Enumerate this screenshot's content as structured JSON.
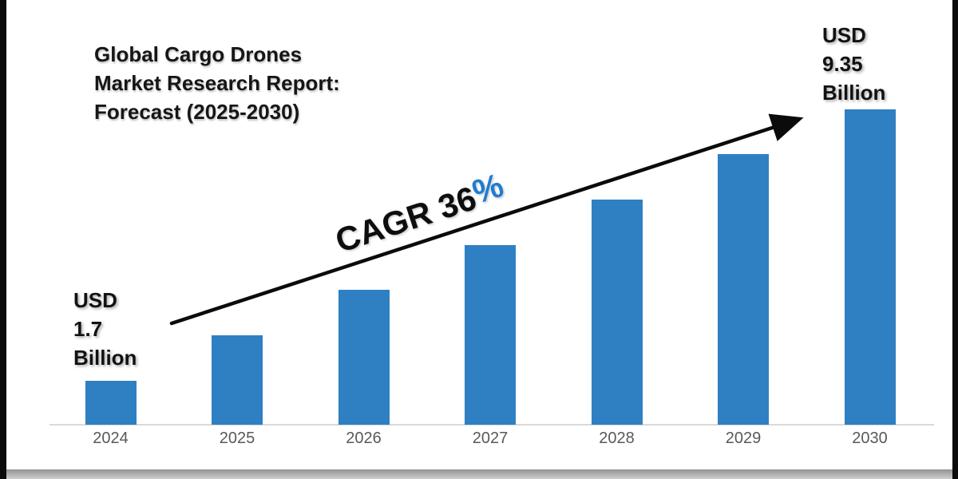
{
  "page": {
    "background": "#ffffff",
    "frame_border_color": "#0b0b0b",
    "bottom_strip_color": "#929292"
  },
  "title": {
    "text": "Global Cargo Drones Market Research Report: Forecast (2025-2030)",
    "lines": [
      "Global Cargo Drones",
      "Market Research Report:",
      "Forecast (2025-2030)"
    ]
  },
  "annotations": {
    "start_label": {
      "lines": [
        "USD",
        "1.7",
        "Billion"
      ],
      "text": "USD 1.7 Billion"
    },
    "end_label": {
      "lines": [
        "USD",
        "9.35",
        "Billion"
      ],
      "text": "USD 9.35 Billion"
    },
    "cagr": {
      "black_part": "CAGR 36",
      "percent_sign": "%",
      "percent_color": "#1e7cd2"
    }
  },
  "chart_data": {
    "type": "bar",
    "title": "Global Cargo Drones Market Research Report: Forecast (2025-2030)",
    "categories": [
      "2024",
      "2025",
      "2026",
      "2027",
      "2028",
      "2029",
      "2030"
    ],
    "values": [
      1.7,
      2.98,
      4.26,
      5.53,
      6.81,
      8.08,
      9.35
    ],
    "labeled_points": [
      {
        "category": "2024",
        "label": "USD 1.7 Billion",
        "value": 1.7
      },
      {
        "category": "2030",
        "label": "USD 9.35 Billion",
        "value": 9.35
      }
    ],
    "annotation": "CAGR 36%",
    "unit": "USD Billion",
    "xlabel": "",
    "ylabel": "",
    "grid": false,
    "legend": false,
    "bar_color": "#2e80c3",
    "axis_color": "#d9d9d9",
    "tick_label_color": "#595959",
    "note": "bar heights scale linearly between labeled endpoints 1.7 and 9.35"
  }
}
